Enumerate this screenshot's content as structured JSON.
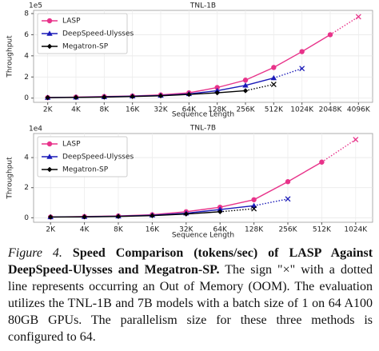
{
  "chart_data": [
    {
      "type": "line",
      "title": "TNL-1B",
      "xlabel": "Sequence Length",
      "ylabel": "Throughput",
      "y_scale_label": "1e5",
      "categories": [
        "2K",
        "4K",
        "8K",
        "16K",
        "32K",
        "64K",
        "128K",
        "256K",
        "512K",
        "1024K",
        "2048K",
        "4096K"
      ],
      "ylim": [
        -0.4,
        8.3
      ],
      "yticks": [
        0,
        2,
        4,
        6,
        8
      ],
      "grid": true,
      "legend": "upper left",
      "series": [
        {
          "name": "LASP",
          "color": "#e8338a",
          "marker": "circle",
          "values": [
            0.05,
            0.1,
            0.15,
            0.2,
            0.3,
            0.5,
            1.0,
            1.7,
            2.9,
            4.4,
            6.0,
            null
          ],
          "oom_values": [
            null,
            null,
            null,
            null,
            null,
            null,
            null,
            null,
            null,
            null,
            null,
            7.7
          ]
        },
        {
          "name": "DeepSpeed-Ulysses",
          "color": "#1a1ab8",
          "marker": "triangle",
          "values": [
            0.05,
            0.08,
            0.12,
            0.18,
            0.25,
            0.4,
            0.7,
            1.2,
            1.9,
            null,
            null,
            null
          ],
          "oom_values": [
            null,
            null,
            null,
            null,
            null,
            null,
            null,
            null,
            null,
            2.8,
            null,
            null
          ]
        },
        {
          "name": "Megatron-SP",
          "color": "#000000",
          "marker": "diamond",
          "values": [
            0.05,
            0.07,
            0.1,
            0.15,
            0.22,
            0.35,
            0.5,
            0.7,
            null,
            null,
            null,
            null
          ],
          "oom_values": [
            null,
            null,
            null,
            null,
            null,
            null,
            null,
            null,
            1.3,
            null,
            null,
            null
          ]
        }
      ]
    },
    {
      "type": "line",
      "title": "TNL-7B",
      "xlabel": "Sequence Length",
      "ylabel": "Throughput",
      "y_scale_label": "1e4",
      "categories": [
        "2K",
        "4K",
        "8K",
        "16K",
        "32K",
        "64K",
        "128K",
        "256K",
        "512K",
        "1024K"
      ],
      "ylim": [
        -0.3,
        5.6
      ],
      "yticks": [
        0,
        2,
        4
      ],
      "grid": true,
      "legend": "upper left",
      "series": [
        {
          "name": "LASP",
          "color": "#e8338a",
          "marker": "circle",
          "values": [
            0.05,
            0.08,
            0.12,
            0.2,
            0.4,
            0.7,
            1.2,
            2.4,
            3.7,
            null
          ],
          "oom_values": [
            null,
            null,
            null,
            null,
            null,
            null,
            null,
            null,
            null,
            5.2
          ]
        },
        {
          "name": "DeepSpeed-Ulysses",
          "color": "#1a1ab8",
          "marker": "triangle",
          "values": [
            0.05,
            0.07,
            0.1,
            0.17,
            0.3,
            0.55,
            0.8,
            null,
            null,
            null
          ],
          "oom_values": [
            null,
            null,
            null,
            null,
            null,
            null,
            null,
            1.25,
            null,
            null
          ]
        },
        {
          "name": "Megatron-SP",
          "color": "#000000",
          "marker": "diamond",
          "values": [
            0.05,
            0.06,
            0.09,
            0.14,
            0.25,
            0.4,
            null,
            null,
            null,
            null
          ],
          "oom_values": [
            null,
            null,
            null,
            null,
            null,
            null,
            0.6,
            null,
            null,
            null
          ]
        }
      ]
    }
  ],
  "caption": {
    "label": "Figure 4.",
    "title": "Speed Comparison (tokens/sec) of LASP Against DeepSpeed-Ulysses and Megatron-SP.",
    "text": "The sign \"×\" with a dotted line represents occurring an Out of Memory (OOM). The evaluation utilizes the TNL-1B and 7B models with a batch size of 1 on 64 A100 80GB GPUs. The parallelism size for these three methods is configured to 64."
  }
}
